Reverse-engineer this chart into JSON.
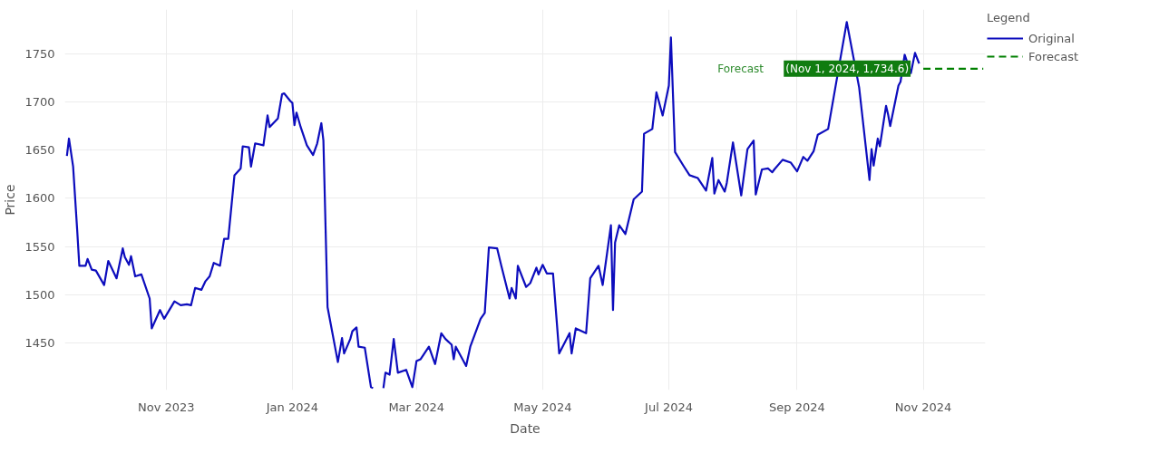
{
  "chart_data": {
    "type": "line",
    "xlabel": "Date",
    "ylabel": "Price",
    "legend_title": "Legend",
    "legend": "top right",
    "grid": true,
    "xlim": [
      "2023-09-13",
      "2024-12-01"
    ],
    "ylim": [
      1401,
      1796
    ],
    "xticks": [
      {
        "value": "2023-11-01",
        "label": "Nov 2023"
      },
      {
        "value": "2024-01-01",
        "label": "Jan 2024"
      },
      {
        "value": "2024-03-01",
        "label": "Mar 2024"
      },
      {
        "value": "2024-05-01",
        "label": "May 2024"
      },
      {
        "value": "2024-07-01",
        "label": "Jul 2024"
      },
      {
        "value": "2024-09-01",
        "label": "Sep 2024"
      },
      {
        "value": "2024-11-01",
        "label": "Nov 2024"
      }
    ],
    "yticks": [
      1450,
      1500,
      1550,
      1600,
      1650,
      1700,
      1750
    ],
    "series": [
      {
        "name": "Original",
        "color": "#0d0dbd",
        "line_style": "solid",
        "x": [
          "2023-09-14",
          "2023-09-15",
          "2023-09-17",
          "2023-09-19",
          "2023-09-20",
          "2023-09-23",
          "2023-09-24",
          "2023-09-26",
          "2023-09-28",
          "2023-10-02",
          "2023-10-04",
          "2023-10-08",
          "2023-10-11",
          "2023-10-12",
          "2023-10-14",
          "2023-10-15",
          "2023-10-17",
          "2023-10-20",
          "2023-10-24",
          "2023-10-25",
          "2023-10-29",
          "2023-10-31",
          "2023-11-05",
          "2023-11-08",
          "2023-11-11",
          "2023-11-13",
          "2023-11-15",
          "2023-11-18",
          "2023-11-20",
          "2023-11-22",
          "2023-11-24",
          "2023-11-27",
          "2023-11-29",
          "2023-12-01",
          "2023-12-04",
          "2023-12-07",
          "2023-12-08",
          "2023-12-11",
          "2023-12-12",
          "2023-12-14",
          "2023-12-18",
          "2023-12-20",
          "2023-12-21",
          "2023-12-25",
          "2023-12-27",
          "2023-12-28",
          "2023-12-31",
          "2024-01-01",
          "2024-01-02",
          "2024-01-03",
          "2024-01-05",
          "2024-01-08",
          "2024-01-11",
          "2024-01-13",
          "2024-01-15",
          "2024-01-16",
          "2024-01-18",
          "2024-01-23",
          "2024-01-25",
          "2024-01-26",
          "2024-01-29",
          "2024-01-30",
          "2024-02-01",
          "2024-02-02",
          "2024-02-05",
          "2024-02-08",
          "2024-02-09",
          "2024-02-11",
          "2024-02-14",
          "2024-02-15",
          "2024-02-17",
          "2024-02-19",
          "2024-02-21",
          "2024-02-25",
          "2024-02-28",
          "2024-03-01",
          "2024-03-03",
          "2024-03-07",
          "2024-03-10",
          "2024-03-13",
          "2024-03-15",
          "2024-03-18",
          "2024-03-19",
          "2024-03-20",
          "2024-03-25",
          "2024-03-27",
          "2024-04-01",
          "2024-04-03",
          "2024-04-05",
          "2024-04-09",
          "2024-04-11",
          "2024-04-15",
          "2024-04-16",
          "2024-04-18",
          "2024-04-19",
          "2024-04-23",
          "2024-04-25",
          "2024-04-28",
          "2024-04-29",
          "2024-05-01",
          "2024-05-03",
          "2024-05-06",
          "2024-05-09",
          "2024-05-14",
          "2024-05-15",
          "2024-05-17",
          "2024-05-22",
          "2024-05-24",
          "2024-05-28",
          "2024-05-30",
          "2024-06-03",
          "2024-06-04",
          "2024-06-05",
          "2024-06-07",
          "2024-06-10",
          "2024-06-14",
          "2024-06-18",
          "2024-06-19",
          "2024-06-23",
          "2024-06-25",
          "2024-06-28",
          "2024-07-01",
          "2024-07-02",
          "2024-07-04",
          "2024-07-08",
          "2024-07-11",
          "2024-07-15",
          "2024-07-19",
          "2024-07-22",
          "2024-07-23",
          "2024-07-25",
          "2024-07-28",
          "2024-07-29",
          "2024-08-01",
          "2024-08-05",
          "2024-08-08",
          "2024-08-11",
          "2024-08-12",
          "2024-08-15",
          "2024-08-18",
          "2024-08-20",
          "2024-08-21",
          "2024-08-25",
          "2024-08-29",
          "2024-09-01",
          "2024-09-04",
          "2024-09-06",
          "2024-09-09",
          "2024-09-11",
          "2024-09-16",
          "2024-09-25",
          "2024-10-01",
          "2024-10-06",
          "2024-10-07",
          "2024-10-08",
          "2024-10-10",
          "2024-10-11",
          "2024-10-14",
          "2024-10-15",
          "2024-10-16",
          "2024-10-20",
          "2024-10-21",
          "2024-10-23",
          "2024-10-26",
          "2024-10-28",
          "2024-10-30"
        ],
        "values": [
          1644,
          1662,
          1633,
          1566,
          1530,
          1530,
          1537,
          1526,
          1525,
          1510,
          1535,
          1517,
          1548,
          1539,
          1531,
          1540,
          1519,
          1521,
          1496,
          1465,
          1484,
          1475,
          1493,
          1489,
          1490,
          1489,
          1507,
          1505,
          1514,
          1519,
          1533,
          1530,
          1558,
          1558,
          1624,
          1631,
          1654,
          1653,
          1633,
          1657,
          1655,
          1686,
          1674,
          1683,
          1708,
          1709,
          1701,
          1699,
          1676,
          1689,
          1674,
          1655,
          1645,
          1657,
          1678,
          1660,
          1487,
          1430,
          1455,
          1439,
          1454,
          1462,
          1466,
          1446,
          1445,
          1404,
          1403,
          null,
          1403,
          1419,
          1417,
          1454,
          1419,
          1422,
          1404,
          1431,
          1433,
          1446,
          1428,
          1460,
          1454,
          1448,
          1433,
          1446,
          1426,
          1446,
          1475,
          1481,
          1549,
          1548,
          1530,
          1496,
          1507,
          1496,
          1530,
          1508,
          1512,
          1528,
          1521,
          1531,
          1522,
          1522,
          1439,
          1460,
          1439,
          1465,
          1460,
          1517,
          1530,
          1510,
          1572,
          1484,
          1554,
          1572,
          1563,
          1599,
          1607,
          1667,
          1672,
          1710,
          1686,
          1717,
          1767,
          1648,
          1634,
          1624,
          1621,
          1608,
          1642,
          1605,
          1619,
          1607,
          1616,
          1658,
          1603,
          1651,
          1660,
          1604,
          1630,
          1631,
          1627,
          1630,
          1640,
          1637,
          1628,
          1643,
          1639,
          1649,
          1666,
          1672,
          1783,
          1715,
          1619,
          1651,
          1634,
          1662,
          1654,
          1696,
          1687,
          1675,
          1717,
          1721,
          1749,
          1730,
          1751,
          1740
        ]
      },
      {
        "name": "Forecast",
        "color": "#008000",
        "line_style": "dashed",
        "x": [
          "2024-11-01",
          "2024-11-30"
        ],
        "values": [
          1734.6,
          1734.6
        ]
      }
    ],
    "annotations": [
      "Forecast",
      {
        "text": "(Nov 1, 2024, 1,734.6)",
        "x": "2024-11-01",
        "y": 1734.6
      }
    ]
  }
}
